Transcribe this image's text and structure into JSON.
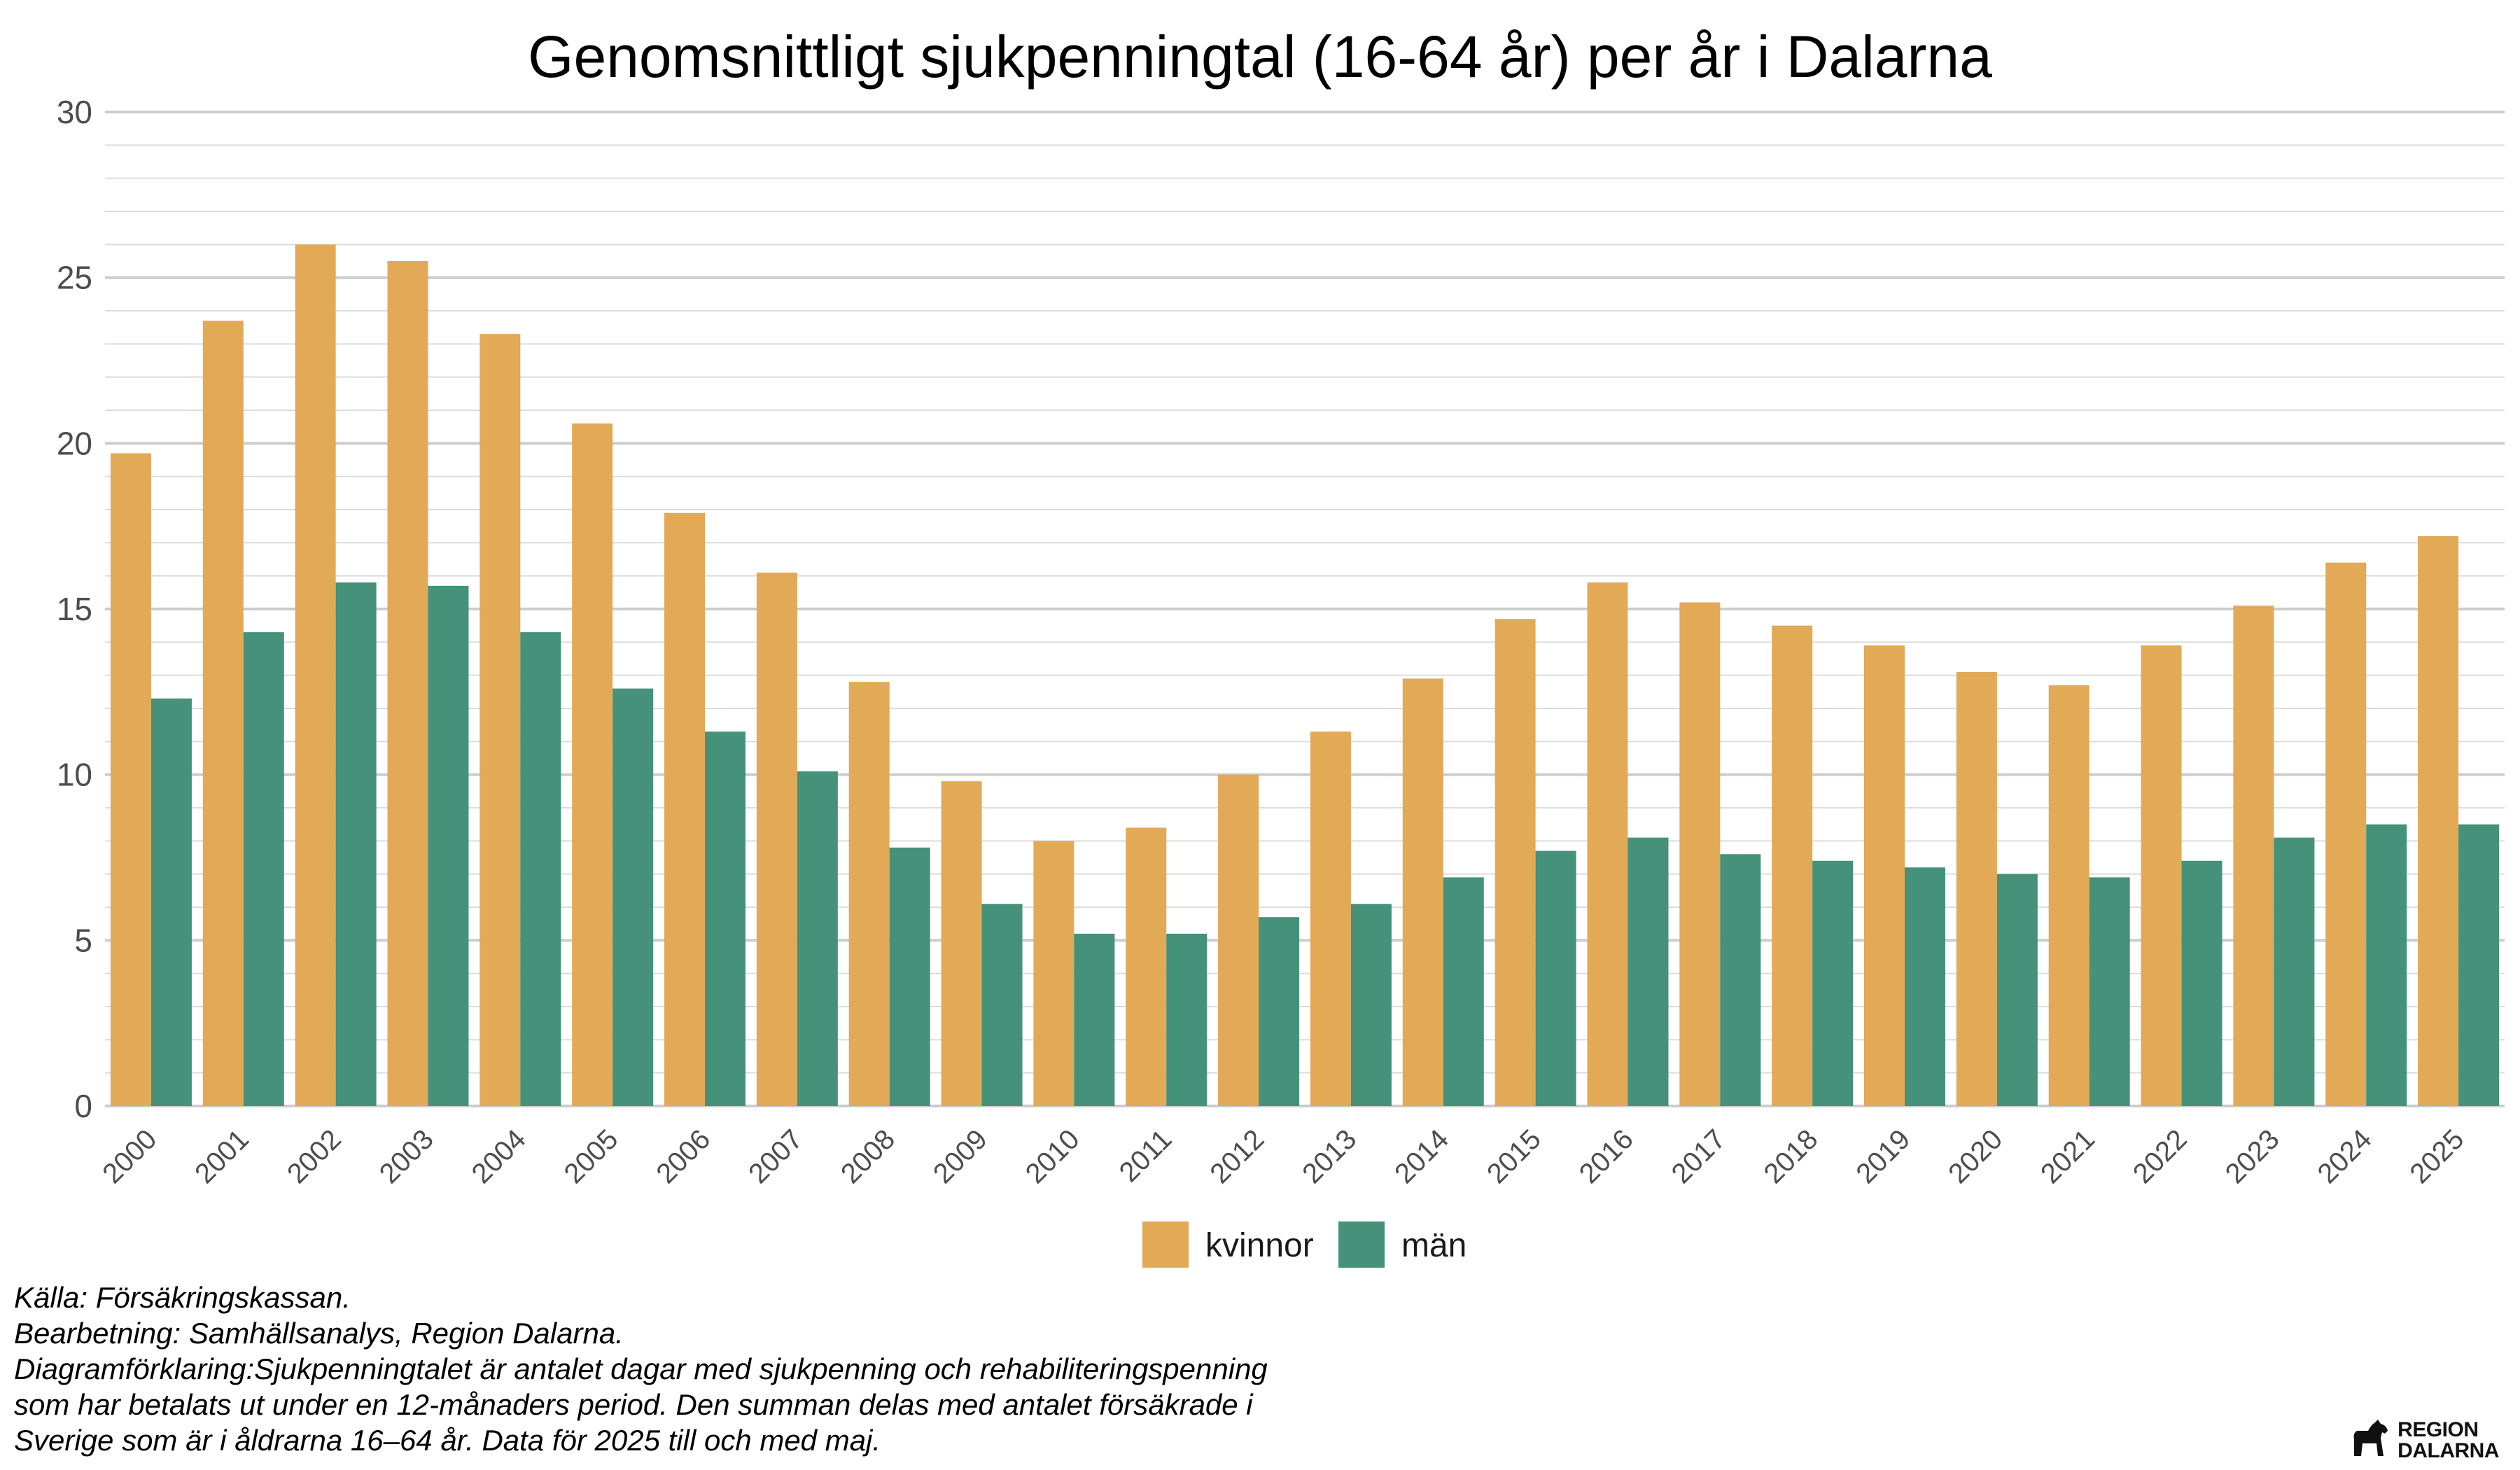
{
  "chart_data": {
    "type": "bar",
    "title": "Genomsnittligt sjukpenningtal (16-64 år) per år i Dalarna",
    "xlabel": "",
    "ylabel": "",
    "ylim": [
      0,
      30
    ],
    "yticks": [
      "0",
      "5",
      "10",
      "15",
      "20",
      "25",
      "30"
    ],
    "grid": true,
    "legend_position": "bottom",
    "categories": [
      "2000",
      "2001",
      "2002",
      "2003",
      "2004",
      "2005",
      "2006",
      "2007",
      "2008",
      "2009",
      "2010",
      "2011",
      "2012",
      "2013",
      "2014",
      "2015",
      "2016",
      "2017",
      "2018",
      "2019",
      "2020",
      "2021",
      "2022",
      "2023",
      "2024",
      "2025"
    ],
    "series": [
      {
        "name": "kvinnor",
        "color": "#E2A957",
        "values": [
          19.7,
          23.7,
          26.0,
          25.5,
          23.3,
          20.6,
          17.9,
          16.1,
          12.8,
          9.8,
          8.0,
          8.4,
          10.0,
          11.3,
          12.9,
          14.7,
          15.8,
          15.2,
          14.5,
          13.9,
          13.1,
          12.7,
          13.9,
          15.1,
          16.4,
          17.2
        ]
      },
      {
        "name": "män",
        "color": "#45917A",
        "values": [
          12.3,
          14.3,
          15.8,
          15.7,
          14.3,
          12.6,
          11.3,
          10.1,
          7.8,
          6.1,
          5.2,
          5.2,
          5.7,
          6.1,
          6.9,
          7.7,
          8.1,
          7.6,
          7.4,
          7.2,
          7.0,
          6.9,
          7.4,
          8.1,
          8.5,
          8.5
        ]
      }
    ]
  },
  "caption": {
    "lines": [
      "Källa: Försäkringskassan.",
      "Bearbetning: Samhällsanalys, Region Dalarna.",
      "Diagramförklaring:Sjukpenningtalet är antalet dagar med sjukpenning och rehabiliteringspenning",
      "som har betalats ut under en 12-månaders period. Den summan delas med antalet försäkrade i",
      "Sverige som är i åldrarna 16–64 år. Data för 2025 till och med maj."
    ]
  },
  "logo": {
    "line1": "REGION",
    "line2": "DALARNA",
    "icon": "dala-horse-icon"
  }
}
